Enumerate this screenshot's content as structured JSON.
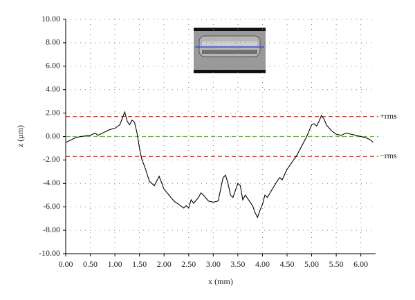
{
  "chart_data": {
    "type": "line",
    "xlabel": "x (mm)",
    "ylabel": "z (μm)",
    "xlim": [
      0,
      6.3
    ],
    "ylim": [
      -10,
      10
    ],
    "xticks": [
      {
        "value": 0,
        "label": "0.00"
      },
      {
        "value": 0.5,
        "label": "0.50"
      },
      {
        "value": 1,
        "label": "1.00"
      },
      {
        "value": 1.5,
        "label": "1.50"
      },
      {
        "value": 2,
        "label": "2.00"
      },
      {
        "value": 2.5,
        "label": "2.50"
      },
      {
        "value": 3,
        "label": "3.00"
      },
      {
        "value": 3.5,
        "label": "3.50"
      },
      {
        "value": 4,
        "label": "4.00"
      },
      {
        "value": 4.5,
        "label": "4.50"
      },
      {
        "value": 5,
        "label": "5.00"
      },
      {
        "value": 5.5,
        "label": "5.50"
      },
      {
        "value": 6,
        "label": "6.00"
      }
    ],
    "yticks": [
      {
        "value": -10,
        "label": "-10.00"
      },
      {
        "value": -8,
        "label": "-8.00"
      },
      {
        "value": -6,
        "label": "-6.00"
      },
      {
        "value": -4,
        "label": "-4.00"
      },
      {
        "value": -2,
        "label": "-2.00"
      },
      {
        "value": 0,
        "label": "0.00"
      },
      {
        "value": 2,
        "label": "2.00"
      },
      {
        "value": 4,
        "label": "4.00"
      },
      {
        "value": 6,
        "label": "6.00"
      },
      {
        "value": 8,
        "label": "8.00"
      },
      {
        "value": 10,
        "label": "10.00"
      }
    ],
    "grid": true,
    "x": [
      0,
      0.1,
      0.2,
      0.3,
      0.4,
      0.5,
      0.6,
      0.65,
      0.7,
      0.8,
      0.9,
      1.0,
      1.1,
      1.2,
      1.25,
      1.3,
      1.35,
      1.4,
      1.45,
      1.5,
      1.55,
      1.6,
      1.7,
      1.8,
      1.9,
      2.0,
      2.1,
      2.2,
      2.3,
      2.4,
      2.45,
      2.5,
      2.55,
      2.6,
      2.7,
      2.75,
      2.8,
      2.9,
      3.0,
      3.1,
      3.15,
      3.2,
      3.25,
      3.3,
      3.35,
      3.4,
      3.45,
      3.5,
      3.55,
      3.6,
      3.65,
      3.7,
      3.8,
      3.85,
      3.9,
      3.95,
      4.0,
      4.05,
      4.1,
      4.2,
      4.3,
      4.35,
      4.4,
      4.5,
      4.6,
      4.7,
      4.8,
      4.9,
      5.0,
      5.05,
      5.1,
      5.15,
      5.2,
      5.25,
      5.3,
      5.4,
      5.5,
      5.6,
      5.7,
      5.8,
      5.9,
      6.0,
      6.1,
      6.2,
      6.25
    ],
    "series": [
      {
        "color": "#000000",
        "values": [
          -0.5,
          -0.3,
          -0.1,
          0.0,
          0.05,
          0.1,
          0.3,
          0.1,
          0.2,
          0.4,
          0.6,
          0.7,
          1.0,
          2.1,
          1.3,
          1.0,
          1.4,
          1.2,
          0.3,
          -1.0,
          -2.0,
          -2.5,
          -3.8,
          -4.2,
          -3.4,
          -4.5,
          -5.0,
          -5.5,
          -5.8,
          -6.1,
          -5.9,
          -6.1,
          -5.4,
          -5.7,
          -5.2,
          -4.8,
          -5.0,
          -5.5,
          -5.6,
          -5.5,
          -4.5,
          -3.5,
          -3.3,
          -4.0,
          -5.0,
          -5.2,
          -4.6,
          -4.0,
          -4.2,
          -5.4,
          -5.0,
          -5.3,
          -5.9,
          -6.5,
          -6.9,
          -6.3,
          -5.8,
          -5.0,
          -5.2,
          -4.5,
          -3.8,
          -3.5,
          -3.7,
          -2.8,
          -2.2,
          -1.6,
          -0.8,
          0.0,
          1.0,
          1.1,
          0.9,
          1.3,
          1.8,
          1.5,
          1.0,
          0.5,
          0.2,
          0.1,
          0.3,
          0.2,
          0.1,
          0.0,
          -0.1,
          -0.3,
          -0.5
        ]
      }
    ],
    "reference_lines": [
      {
        "value": 1.7,
        "label": "+rms",
        "color": "#c0392b"
      },
      {
        "value": -1.7,
        "label": "−rms",
        "color": "#c0392b"
      },
      {
        "value": 0,
        "color": "#6ab04c"
      }
    ]
  }
}
